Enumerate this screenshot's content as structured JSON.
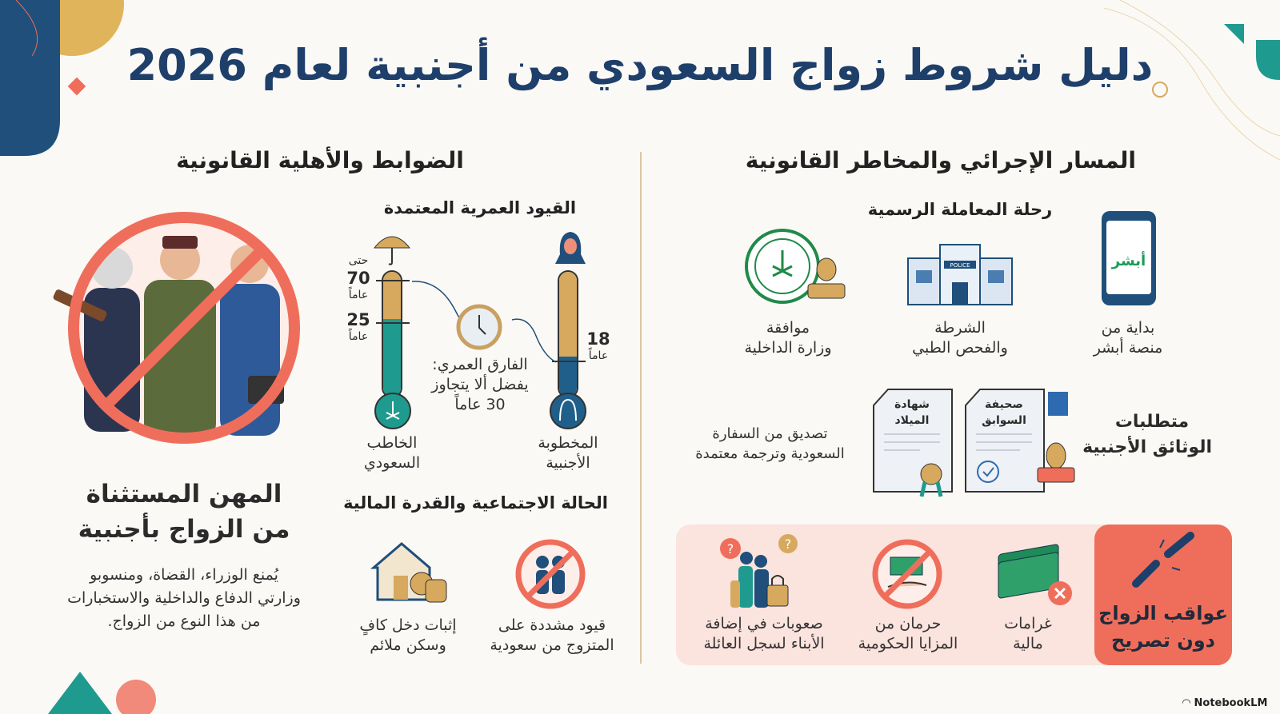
{
  "title": "دليل شروط زواج السعودي من أجنبية لعام 2026",
  "left": {
    "heading": "الضوابط والأهلية القانونية",
    "excluded": {
      "title_line1": "المهن المستثناة",
      "title_line2": "من الزواج بأجنبية",
      "desc_line1": "يُمنع الوزراء، القضاة، ومنسوبو",
      "desc_line2": "وزارتي الدفاع والداخلية والاستخبارات",
      "desc_line3": "من هذا النوع من الزواج."
    },
    "age": {
      "heading": "القيود العمرية المعتمدة",
      "groom_label_1": "الخاطب",
      "groom_label_2": "السعودي",
      "groom_max_prefix": "حتى",
      "groom_max": "70",
      "groom_min": "25",
      "years": "عاماً",
      "bride_label_1": "المخطوبة",
      "bride_label_2": "الأجنبية",
      "bride_min": "18",
      "gap_line1": "الفارق العمري:",
      "gap_line2": "يفضل ألا يتجاوز",
      "gap_line3": "30 عاماً"
    },
    "social": {
      "heading": "الحالة الاجتماعية والقدرة المالية",
      "item1_line1": "إثبات دخل كافٍ",
      "item1_line2": "وسكن ملائم",
      "item2_line1": "قيود مشددة على",
      "item2_line2": "المتزوج من سعودية"
    }
  },
  "right": {
    "heading": "المسار الإجرائي والمخاطر القانونية",
    "journey": {
      "heading": "رحلة المعاملة الرسمية",
      "steps": [
        {
          "line1": "بداية من",
          "line2": "منصة أبشر",
          "icon_text": "أبشر"
        },
        {
          "line1": "الشرطة",
          "line2": "والفحص الطبي",
          "icon_text": "POLICE"
        },
        {
          "line1": "موافقة",
          "line2": "وزارة الداخلية"
        }
      ]
    },
    "documents": {
      "heading_line1": "متطلبات",
      "heading_line2": "الوثائق الأجنبية",
      "doc1_line1": "صحيفة",
      "doc1_line2": "السوابق",
      "doc2_line1": "شهادة",
      "doc2_line2": "الميلاد",
      "note_line1": "تصديق من السفارة",
      "note_line2": "السعودية وترجمة معتمدة"
    },
    "consequences": {
      "heading_line1": "عواقب الزواج",
      "heading_line2": "دون تصريح",
      "items": [
        {
          "line1": "غرامات",
          "line2": "مالية"
        },
        {
          "line1": "حرمان من",
          "line2": "المزايا الحكومية"
        },
        {
          "line1": "صعوبات في إضافة",
          "line2": "الأبناء لسجل العائلة"
        }
      ]
    }
  },
  "footer": {
    "brand": "NotebookLM"
  },
  "colors": {
    "navy": "#1f3f6b",
    "teal": "#1f9a8f",
    "gold": "#d6a95e",
    "red": "#ef6e5b",
    "pink": "#fbe3de"
  }
}
